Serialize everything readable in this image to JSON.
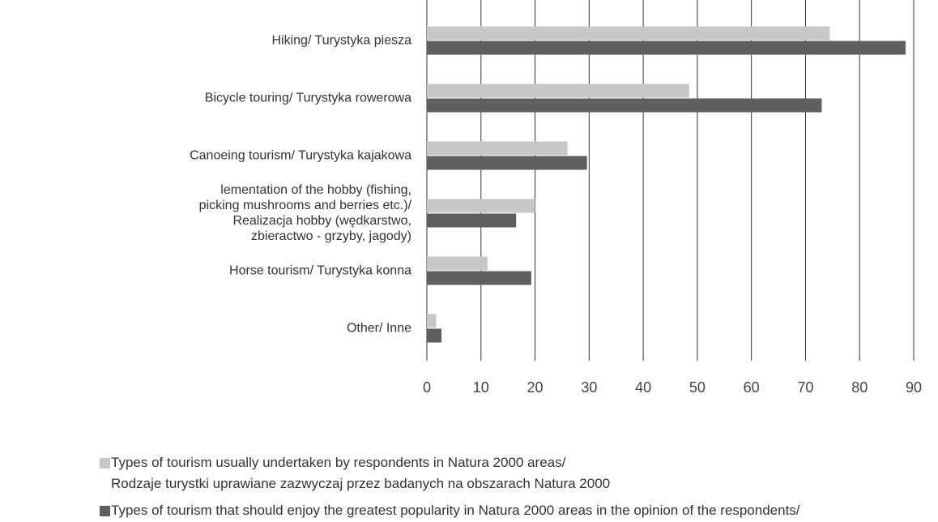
{
  "chart_data": {
    "type": "bar",
    "orientation": "horizontal",
    "categories": [
      "Hiking/ Turystyka piesza",
      "Bicycle touring/ Turystyka rowerowa",
      "Canoeing tourism/ Turystyka kajakowa",
      "lementation of the hobby (fishing,\npicking mushrooms and berries etc.)/\nRealizacja hobby (wędkarstwo,\nzbieractwo - grzyby, jagody)",
      "Horse tourism/ Turystyka konna",
      "Other/ Inne"
    ],
    "series": [
      {
        "name": "Types of tourism usually undertaken by respondents in Natura 2000 areas/\nRodzaje turystki uprawiane zazwyczaj przez badanych na obszarach Natura 2000",
        "color": "#c8c8c8",
        "values": [
          74.5,
          48.5,
          26,
          20,
          11.2,
          1.7
        ]
      },
      {
        "name": "Types of tourism that should enjoy the greatest popularity in Natura 2000 areas in the opinion of the respondents/\nRodzaje turystyki, które cieszyć się powinny największą popularnością na obszarach Natura 2000 w opinii badanych",
        "color": "#5f5f5f",
        "values": [
          88.5,
          73,
          29.6,
          16.5,
          19.3,
          2.7
        ]
      }
    ],
    "xlim": [
      0,
      90
    ],
    "xticks": [
      0,
      10,
      20,
      30,
      40,
      50,
      60,
      70,
      80,
      90
    ],
    "grid": true
  }
}
